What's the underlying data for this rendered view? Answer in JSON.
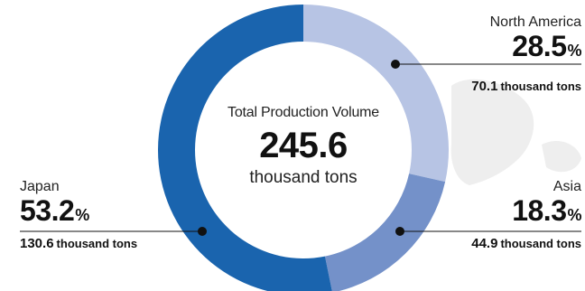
{
  "colors": {
    "japan": "#1a64ae",
    "north_america": "#b7c4e4",
    "asia": "#7491c9",
    "map_land": "#eeeeee",
    "leader": "#111111"
  },
  "center": {
    "title": "Total Production Volume",
    "total": "245.6",
    "unit": "thousand tons"
  },
  "chart_data": {
    "type": "pie",
    "variant": "donut",
    "title": "Total Production Volume",
    "total": 245.6,
    "unit": "thousand tons",
    "slices": [
      {
        "name": "North America",
        "percent": 28.5,
        "value": 70.1,
        "color": "#b7c4e4"
      },
      {
        "name": "Asia",
        "percent": 18.3,
        "value": 44.9,
        "color": "#7491c9"
      },
      {
        "name": "Japan",
        "percent": 53.2,
        "value": 130.6,
        "color": "#1a64ae"
      }
    ]
  },
  "labels": {
    "north_america": {
      "name": "North America",
      "percent": "28.5",
      "percent_sign": "%",
      "amount": "70.1",
      "unit": "thousand tons"
    },
    "asia": {
      "name": "Asia",
      "percent": "18.3",
      "percent_sign": "%",
      "amount": "44.9",
      "unit": "thousand tons"
    },
    "japan": {
      "name": "Japan",
      "percent": "53.2",
      "percent_sign": "%",
      "amount": "130.6",
      "unit": "thousand tons"
    }
  }
}
